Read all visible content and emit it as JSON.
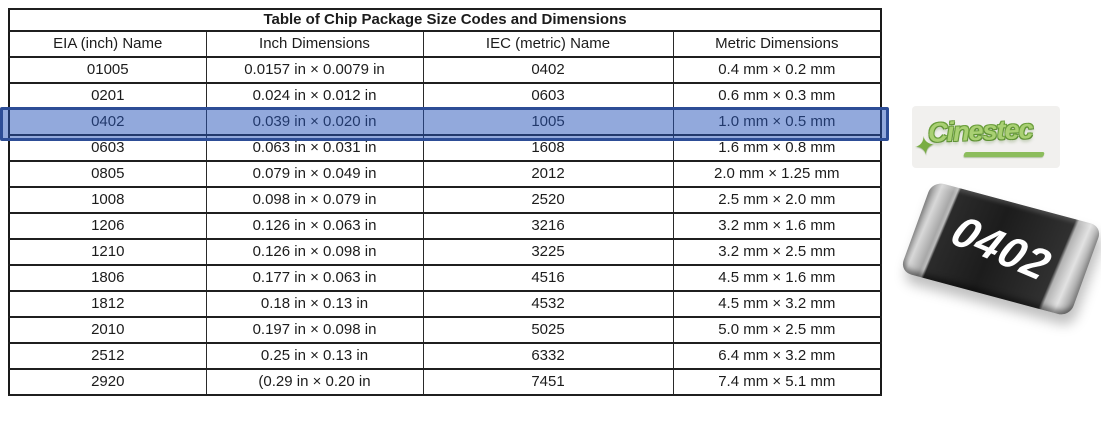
{
  "table": {
    "title": "Table of Chip Package Size Codes and Dimensions",
    "columns": [
      "EIA (inch) Name",
      "Inch Dimensions",
      "IEC (metric) Name",
      "Metric Dimensions"
    ],
    "rows": [
      [
        "01005",
        "0.0157 in × 0.0079 in",
        "0402",
        "0.4 mm × 0.2 mm"
      ],
      [
        "0201",
        "0.024 in × 0.012 in",
        "0603",
        "0.6 mm × 0.3 mm"
      ],
      [
        "0402",
        "0.039 in × 0.020 in",
        "1005",
        "1.0 mm × 0.5 mm"
      ],
      [
        "0603",
        "0.063 in × 0.031 in",
        "1608",
        "1.6 mm × 0.8 mm"
      ],
      [
        "0805",
        "0.079 in × 0.049 in",
        "2012",
        "2.0 mm × 1.25 mm"
      ],
      [
        "1008",
        "0.098 in × 0.079 in",
        "2520",
        "2.5 mm × 2.0 mm"
      ],
      [
        "1206",
        "0.126 in × 0.063 in",
        "3216",
        "3.2 mm × 1.6 mm"
      ],
      [
        "1210",
        "0.126 in × 0.098 in",
        "3225",
        "3.2 mm × 2.5 mm"
      ],
      [
        "1806",
        "0.177 in × 0.063 in",
        "4516",
        "4.5 mm × 1.6 mm"
      ],
      [
        "1812",
        "0.18 in × 0.13 in",
        "4532",
        "4.5 mm × 3.2 mm"
      ],
      [
        "2010",
        "0.197 in × 0.098 in",
        "5025",
        "5.0 mm × 2.5 mm"
      ],
      [
        "2512",
        "0.25 in × 0.13 in",
        "6332",
        "6.4 mm × 3.2 mm"
      ],
      [
        "2920",
        "(0.29 in × 0.20 in",
        "7451",
        "7.4 mm × 5.1 mm"
      ]
    ],
    "highlighted_row_index": 2,
    "highlight_fill": "rgba(37,83,185,0.5)",
    "highlight_border": "#2d4d96"
  },
  "logo": {
    "text": "Cinestec",
    "color": "#8fc054"
  },
  "chip": {
    "label": "0402",
    "body_color": "#1c1c1c",
    "cap_color": "#c8c8c8"
  }
}
